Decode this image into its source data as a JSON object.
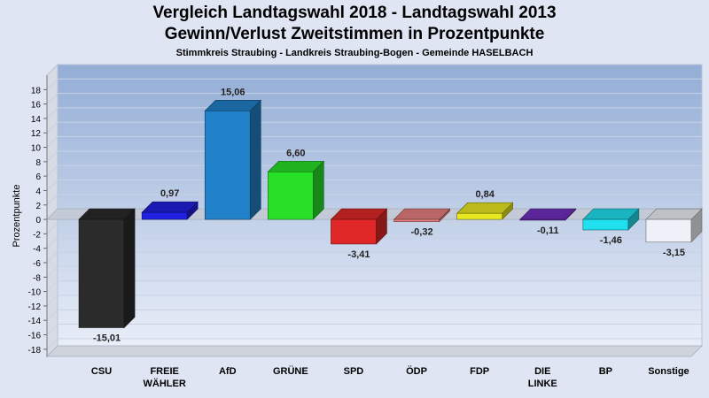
{
  "chart_data": {
    "type": "bar",
    "title": "Vergleich Landtagswahl 2018 - Landtagswahl 2013",
    "subtitle": "Gewinn/Verlust Zweitstimmen in Prozentpunkte",
    "subtitle2": "Stimmkreis Straubing - Landkreis Straubing-Bogen - Gemeinde HASELBACH",
    "ylabel": "Prozentpunkte",
    "xlabel": "",
    "ylim": [
      -19,
      20
    ],
    "yticks": [
      18,
      16,
      14,
      12,
      10,
      8,
      6,
      4,
      2,
      0,
      -2,
      -4,
      -6,
      -8,
      -10,
      -12,
      -14,
      -16,
      -18
    ],
    "grid": true,
    "categories": [
      [
        "CSU"
      ],
      [
        "FREIE",
        "WÄHLER"
      ],
      [
        "AfD"
      ],
      [
        "GRÜNE"
      ],
      [
        "SPD"
      ],
      [
        "ÖDP"
      ],
      [
        "FDP"
      ],
      [
        "DIE",
        "LINKE"
      ],
      [
        "BP"
      ],
      [
        "Sonstige"
      ]
    ],
    "values": [
      -15.01,
      0.97,
      15.06,
      6.6,
      -3.41,
      -0.32,
      0.84,
      -0.11,
      -1.46,
      -3.15
    ],
    "value_labels": [
      "-15,01",
      "0,97",
      "15,06",
      "6,60",
      "-3,41",
      "-0,32",
      "0,84",
      "-0,11",
      "-1,46",
      "-3,15"
    ],
    "colors": [
      "#2b2b2b",
      "#2020e0",
      "#2080c8",
      "#28e028",
      "#e02828",
      "#e88080",
      "#e8e820",
      "#7030c0",
      "#20e0f0",
      "#eef2f8"
    ]
  }
}
